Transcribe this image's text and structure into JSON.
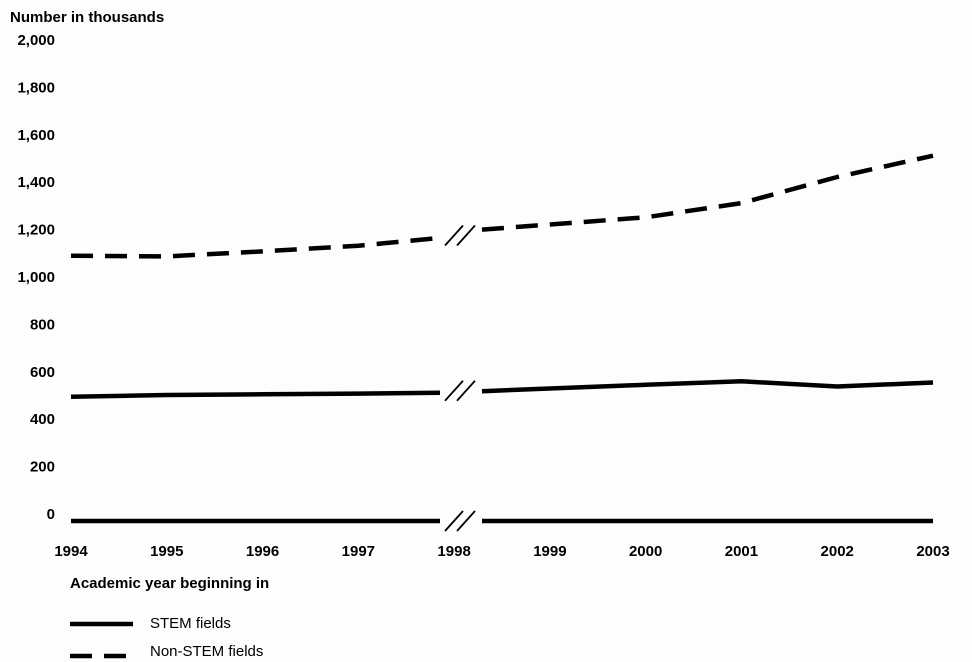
{
  "chart_data": {
    "type": "line",
    "ylabel": "Number in thousands",
    "xlabel": "Academic year beginning in",
    "x": [
      1994,
      1995,
      1996,
      1997,
      1998,
      1999,
      2000,
      2001,
      2002,
      2003
    ],
    "x_tick_labels": [
      "1994",
      "1995",
      "1996",
      "1997",
      "1998",
      "1999",
      "2000",
      "2001",
      "2002",
      "2003"
    ],
    "ylim": [
      0,
      2000
    ],
    "y_tick_labels": [
      "0",
      "200",
      "400",
      "600",
      "800",
      "1,000",
      "1,200",
      "1,400",
      "1,600",
      "1,800",
      "2,000"
    ],
    "axis_break_after": 1998,
    "grid": false,
    "legend_placement": "bottom-left",
    "series": [
      {
        "name": "STEM fields",
        "style": "solid",
        "values": [
          495,
          502,
          505,
          508,
          512,
          518,
          545,
          560,
          538,
          555
        ]
      },
      {
        "name": "Non-STEM fields",
        "style": "dashed",
        "values": [
          1090,
          1087,
          1108,
          1132,
          1165,
          1200,
          1252,
          1312,
          1422,
          1512
        ]
      }
    ],
    "colors": {
      "line": "#000000",
      "background": "#fdfdfd"
    }
  }
}
